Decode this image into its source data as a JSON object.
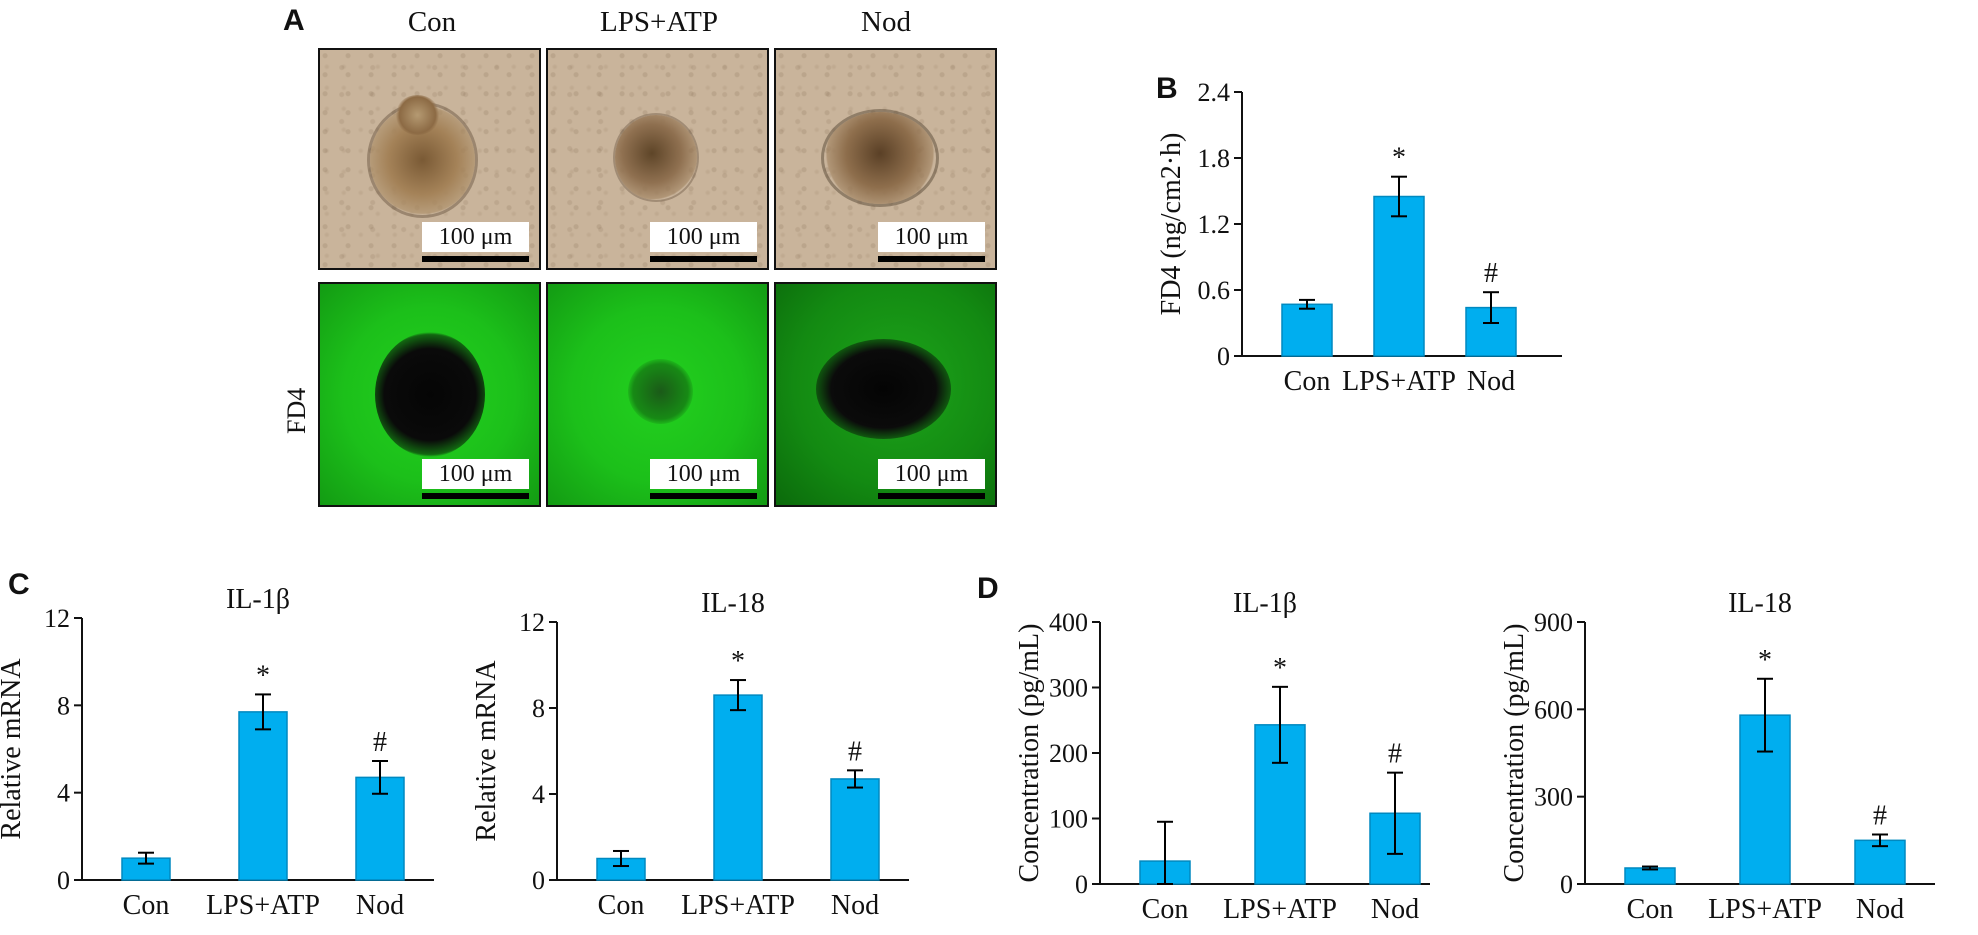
{
  "panels": {
    "A": "A",
    "B": "B",
    "C": "C",
    "D": "D"
  },
  "micrograph": {
    "columns": [
      "Con",
      "LPS+ATP",
      "Nod"
    ],
    "scale_bar": "100 μm",
    "row_label": "FD4"
  },
  "colors": {
    "bar_fill": "#00aeef",
    "bar_stroke": "#0089c0",
    "axis": "#111111"
  },
  "chart_data": [
    {
      "id": "B",
      "type": "bar",
      "title": "",
      "categories": [
        "Con",
        "LPS+ATP",
        "Nod"
      ],
      "values": [
        0.47,
        1.45,
        0.44
      ],
      "errors": [
        0.04,
        0.18,
        0.14
      ],
      "annotations": [
        "",
        "*",
        "#"
      ],
      "ylabel": "FD4 (ng/cm2·h)",
      "ylim": [
        0,
        2.4
      ],
      "yticks": [
        "0",
        "0.6",
        "1.2",
        "1.8",
        "2.4"
      ],
      "ytick_values": [
        0,
        0.6,
        1.2,
        1.8,
        2.4
      ]
    },
    {
      "id": "C1",
      "type": "bar",
      "title": "IL-1β",
      "categories": [
        "Con",
        "LPS+ATP",
        "Nod"
      ],
      "values": [
        1.0,
        7.7,
        4.7
      ],
      "errors": [
        0.25,
        0.8,
        0.75
      ],
      "annotations": [
        "",
        "*",
        "#"
      ],
      "ylabel": "Relative mRNA",
      "ylim": [
        0,
        12
      ],
      "yticks": [
        "0",
        "4",
        "8",
        "12"
      ],
      "ytick_values": [
        0,
        4,
        8,
        12
      ]
    },
    {
      "id": "C2",
      "type": "bar",
      "title": "IL-18",
      "categories": [
        "Con",
        "LPS+ATP",
        "Nod"
      ],
      "values": [
        1.0,
        8.6,
        4.7
      ],
      "errors": [
        0.35,
        0.7,
        0.4
      ],
      "annotations": [
        "",
        "*",
        "#"
      ],
      "ylabel": "Relative mRNA",
      "ylim": [
        0,
        12
      ],
      "yticks": [
        "0",
        "4",
        "8",
        "12"
      ],
      "ytick_values": [
        0,
        4,
        8,
        12
      ]
    },
    {
      "id": "D1",
      "type": "bar",
      "title": "IL-1β",
      "categories": [
        "Con",
        "LPS+ATP",
        "Nod"
      ],
      "values": [
        35,
        243,
        108
      ],
      "errors": [
        60,
        58,
        62
      ],
      "annotations": [
        "",
        "*",
        "#"
      ],
      "ylabel": "Concentration (pg/mL)",
      "ylim": [
        0,
        400
      ],
      "yticks": [
        "0",
        "100",
        "200",
        "300",
        "400"
      ],
      "ytick_values": [
        0,
        100,
        200,
        300,
        400
      ]
    },
    {
      "id": "D2",
      "type": "bar",
      "title": "IL-18",
      "categories": [
        "Con",
        "LPS+ATP",
        "Nod"
      ],
      "values": [
        55,
        580,
        150
      ],
      "errors": [
        5,
        125,
        20
      ],
      "annotations": [
        "",
        "*",
        "#"
      ],
      "ylabel": "Concentration (pg/mL)",
      "ylim": [
        0,
        900
      ],
      "yticks": [
        "0",
        "300",
        "600",
        "900"
      ],
      "ytick_values": [
        0,
        300,
        600,
        900
      ]
    }
  ]
}
